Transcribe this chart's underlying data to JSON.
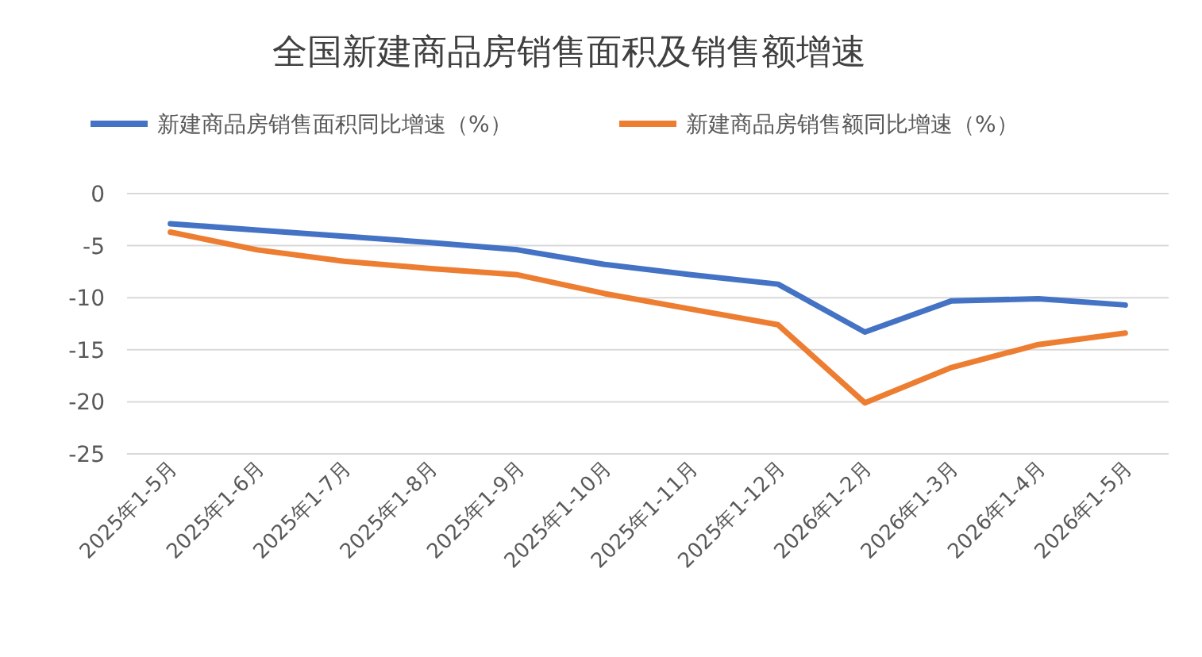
{
  "chart_data": {
    "type": "line",
    "title": "全国新建商品房销售面积及销售额增速",
    "categories": [
      "2025年1-5月",
      "2025年1-6月",
      "2025年1-7月",
      "2025年1-8月",
      "2025年1-9月",
      "2025年1-10月",
      "2025年1-11月",
      "2025年1-12月",
      "2026年1-2月",
      "2026年1-3月",
      "2026年1-4月",
      "2026年1-5月"
    ],
    "series": [
      {
        "name": "新建商品房销售面积同比增速（%）",
        "color": "#4472c4",
        "values": [
          -2.9,
          -3.5,
          -4.1,
          -4.7,
          -5.4,
          -6.8,
          -7.8,
          -8.7,
          -13.3,
          -10.3,
          -10.1,
          -10.7
        ]
      },
      {
        "name": "新建商品房销售额同比增速（%）",
        "color": "#ed7d31",
        "values": [
          -3.7,
          -5.4,
          -6.5,
          -7.2,
          -7.8,
          -9.6,
          -11.1,
          -12.6,
          -20.1,
          -16.7,
          -14.5,
          -13.4
        ]
      }
    ],
    "ylim": [
      -25,
      0
    ],
    "yticks": [
      0,
      -5,
      -10,
      -15,
      -20,
      -25
    ],
    "grid": "y",
    "legend": "top",
    "marker": "none",
    "line_style": "solid"
  }
}
